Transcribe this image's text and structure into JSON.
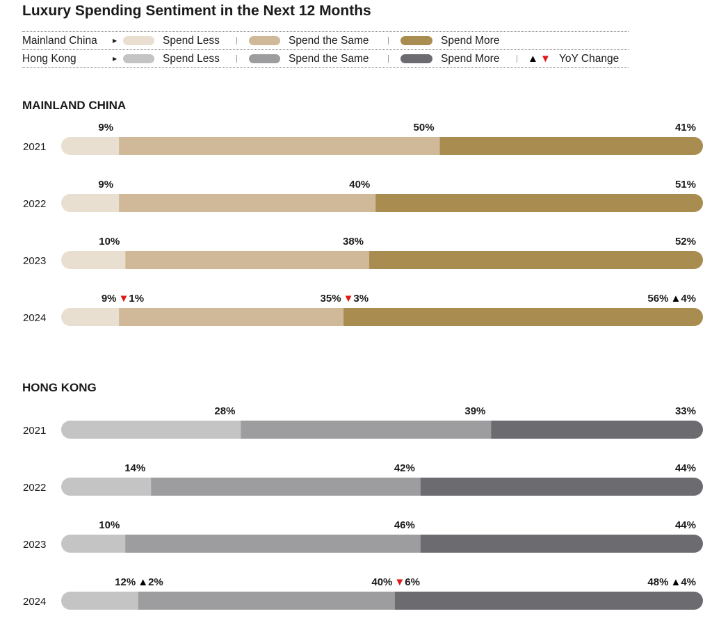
{
  "title": "Luxury Spending Sentiment in the Next 12 Months",
  "legend": {
    "rows": [
      {
        "region": "Mainland China",
        "items": [
          "Spend Less",
          "Spend the Same",
          "Spend More"
        ]
      },
      {
        "region": "Hong Kong",
        "items": [
          "Spend Less",
          "Spend the Same",
          "Spend More"
        ],
        "yoy_label": "YoY Change"
      }
    ],
    "colors": {
      "mainland": [
        "#e9dfd0",
        "#cfb998",
        "#a98c4f"
      ],
      "hongkong": [
        "#c4c4c4",
        "#9d9d9f",
        "#6c6b70"
      ],
      "up_triangle": "#000000",
      "down_triangle": "#e01818"
    }
  },
  "sections": {
    "mainland": {
      "title": "MAINLAND CHINA"
    },
    "hongkong": {
      "title": "HONG KONG"
    }
  },
  "chart_data": [
    {
      "type": "bar",
      "orientation": "horizontal",
      "stacked": true,
      "normalized": "percent",
      "title": "MAINLAND CHINA",
      "categories": [
        "2021",
        "2022",
        "2023",
        "2024"
      ],
      "series": [
        {
          "name": "Spend Less",
          "values": [
            9,
            9,
            10,
            9
          ],
          "labels": [
            "9%",
            "9%",
            "10%",
            "9%"
          ],
          "color": "#e9dfd0"
        },
        {
          "name": "Spend the Same",
          "values": [
            50,
            40,
            38,
            35
          ],
          "labels": [
            "50%",
            "40%",
            "38%",
            "35%"
          ],
          "color": "#cfb998"
        },
        {
          "name": "Spend More",
          "values": [
            41,
            51,
            52,
            56
          ],
          "labels": [
            "41%",
            "51%",
            "52%",
            "56%"
          ],
          "color": "#a98c4f"
        }
      ],
      "yoy_change": {
        "category": "2024",
        "Spend Less": {
          "direction": "down",
          "label": "1%"
        },
        "Spend the Same": {
          "direction": "down",
          "label": "3%"
        },
        "Spend More": {
          "direction": "up",
          "label": "4%"
        }
      }
    },
    {
      "type": "bar",
      "orientation": "horizontal",
      "stacked": true,
      "normalized": "percent",
      "title": "HONG KONG",
      "categories": [
        "2021",
        "2022",
        "2023",
        "2024"
      ],
      "series": [
        {
          "name": "Spend Less",
          "values": [
            28,
            14,
            10,
            12
          ],
          "labels": [
            "28%",
            "14%",
            "10%",
            "12%"
          ],
          "color": "#c4c4c4"
        },
        {
          "name": "Spend the Same",
          "values": [
            39,
            42,
            46,
            40
          ],
          "labels": [
            "39%",
            "42%",
            "46%",
            "40%"
          ],
          "color": "#9d9d9f"
        },
        {
          "name": "Spend More",
          "values": [
            33,
            44,
            44,
            48
          ],
          "labels": [
            "33%",
            "44%",
            "44%",
            "48%"
          ],
          "color": "#6c6b70"
        }
      ],
      "yoy_change": {
        "category": "2024",
        "Spend Less": {
          "direction": "up",
          "label": "2%"
        },
        "Spend the Same": {
          "direction": "down",
          "label": "6%"
        },
        "Spend More": {
          "direction": "up",
          "label": "4%"
        }
      }
    }
  ]
}
